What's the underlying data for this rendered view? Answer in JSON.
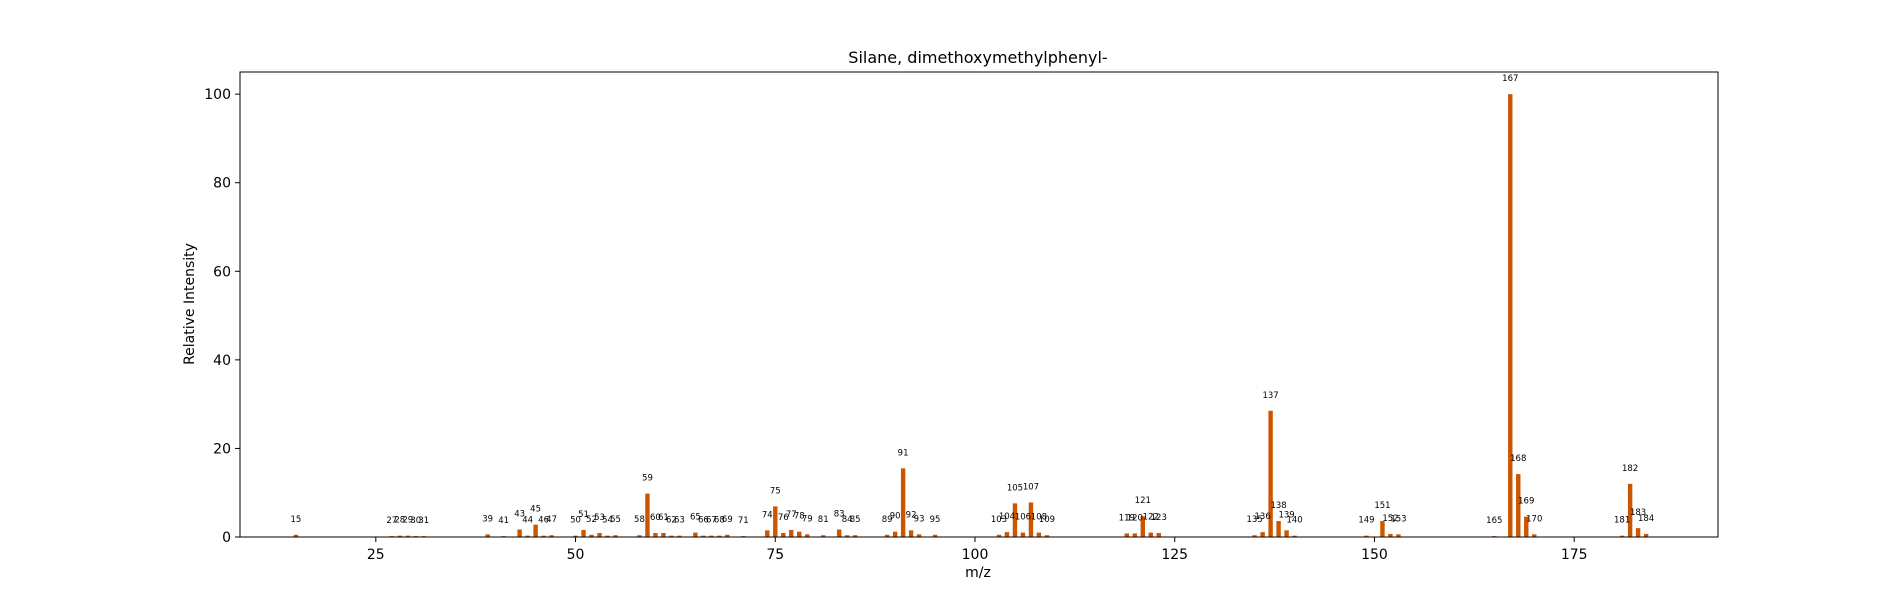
{
  "chart_data": {
    "type": "bar",
    "title": "Silane, dimethoxymethylphenyl-",
    "xlabel": "m/z",
    "ylabel": "Relative Intensity",
    "xlim": [
      8,
      193
    ],
    "ylim": [
      0,
      105
    ],
    "xticks": [
      25,
      50,
      75,
      100,
      125,
      150,
      175
    ],
    "yticks": [
      0,
      20,
      40,
      60,
      80,
      100
    ],
    "grid": false,
    "bar_color": "#cc5500",
    "x": [
      15,
      27,
      28,
      29,
      30,
      31,
      39,
      41,
      43,
      44,
      45,
      46,
      47,
      50,
      51,
      52,
      53,
      54,
      55,
      58,
      59,
      60,
      61,
      62,
      63,
      65,
      66,
      67,
      68,
      69,
      71,
      74,
      75,
      76,
      77,
      78,
      79,
      81,
      83,
      84,
      85,
      89,
      90,
      91,
      92,
      93,
      95,
      103,
      104,
      105,
      106,
      107,
      108,
      109,
      119,
      120,
      121,
      122,
      123,
      135,
      136,
      137,
      138,
      139,
      140,
      149,
      151,
      152,
      153,
      165,
      167,
      168,
      169,
      170,
      181,
      182,
      183,
      184
    ],
    "values": [
      0.5,
      0.2,
      0.3,
      0.3,
      0.2,
      0.2,
      0.6,
      0.2,
      1.7,
      0.3,
      2.8,
      0.3,
      0.4,
      0.3,
      1.6,
      0.5,
      0.9,
      0.3,
      0.4,
      0.4,
      9.8,
      0.9,
      0.9,
      0.3,
      0.3,
      1.0,
      0.3,
      0.3,
      0.3,
      0.5,
      0.2,
      1.5,
      6.9,
      0.9,
      1.6,
      1.2,
      0.6,
      0.4,
      1.7,
      0.4,
      0.4,
      0.5,
      1.2,
      15.5,
      1.5,
      0.6,
      0.5,
      0.5,
      1.1,
      7.6,
      1.0,
      7.8,
      1.0,
      0.4,
      0.8,
      0.8,
      4.7,
      1.0,
      0.9,
      0.4,
      1.1,
      28.5,
      3.6,
      1.5,
      0.3,
      0.3,
      3.6,
      0.7,
      0.6,
      0.2,
      100,
      14.2,
      4.6,
      0.6,
      0.3,
      12.0,
      2.0,
      0.7
    ]
  }
}
